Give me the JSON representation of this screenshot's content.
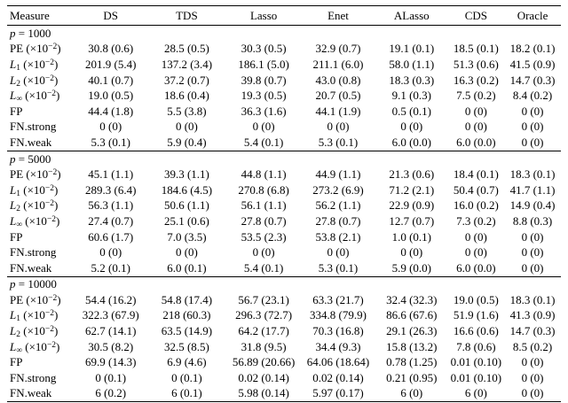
{
  "table": {
    "columns": [
      "Measure",
      "DS",
      "TDS",
      "Lasso",
      "Enet",
      "ALasso",
      "CDS",
      "Oracle"
    ],
    "sections": [
      {
        "param": {
          "var": "p",
          "value": "1000"
        },
        "rows": [
          {
            "measure": {
              "base": "PE",
              "italic": false,
              "sub": "",
              "scale": "×10",
              "exp": "−2"
            },
            "values": [
              "30.8 (0.6)",
              "28.5 (0.5)",
              "30.3 (0.5)",
              "32.9 (0.7)",
              "19.1 (0.1)",
              "18.5 (0.1)",
              "18.2 (0.1)"
            ]
          },
          {
            "measure": {
              "base": "L",
              "italic": true,
              "sub": "1",
              "scale": "×10",
              "exp": "−2"
            },
            "values": [
              "201.9 (5.4)",
              "137.2 (3.4)",
              "186.1 (5.0)",
              "211.1 (6.0)",
              "58.0 (1.1)",
              "51.3 (0.6)",
              "41.5 (0.9)"
            ]
          },
          {
            "measure": {
              "base": "L",
              "italic": true,
              "sub": "2",
              "scale": "×10",
              "exp": "−2"
            },
            "values": [
              "40.1 (0.7)",
              "37.2 (0.7)",
              "39.8 (0.7)",
              "43.0 (0.8)",
              "18.3 (0.3)",
              "16.3 (0.2)",
              "14.7 (0.3)"
            ]
          },
          {
            "measure": {
              "base": "L",
              "italic": true,
              "sub": "∞",
              "scale": "×10",
              "exp": "−2"
            },
            "values": [
              "19.0 (0.5)",
              "18.6 (0.4)",
              "19.3 (0.5)",
              "20.7 (0.5)",
              "9.1 (0.3)",
              "7.5 (0.2)",
              "8.4 (0.2)"
            ]
          },
          {
            "measure": {
              "base": "FP",
              "italic": false,
              "sub": "",
              "scale": "",
              "exp": ""
            },
            "values": [
              "44.4 (1.8)",
              "5.5 (3.8)",
              "36.3 (1.6)",
              "44.1 (1.9)",
              "0.5 (0.1)",
              "0 (0)",
              "0 (0)"
            ]
          },
          {
            "measure": {
              "base": "FN.strong",
              "italic": false,
              "sub": "",
              "scale": "",
              "exp": ""
            },
            "values": [
              "0 (0)",
              "0 (0)",
              "0 (0)",
              "0 (0)",
              "0 (0)",
              "0 (0)",
              "0 (0)"
            ]
          },
          {
            "measure": {
              "base": "FN.weak",
              "italic": false,
              "sub": "",
              "scale": "",
              "exp": ""
            },
            "values": [
              "5.3 (0.1)",
              "5.9 (0.4)",
              "5.4 (0.1)",
              "5.3 (0.1)",
              "6.0 (0.0)",
              "6.0 (0.0)",
              "0 (0)"
            ]
          }
        ]
      },
      {
        "param": {
          "var": "p",
          "value": "5000"
        },
        "rows": [
          {
            "measure": {
              "base": "PE",
              "italic": false,
              "sub": "",
              "scale": "×10",
              "exp": "−2"
            },
            "values": [
              "45.1 (1.1)",
              "39.3 (1.1)",
              "44.8 (1.1)",
              "44.9 (1.1)",
              "21.3 (0.6)",
              "18.4 (0.1)",
              "18.3 (0.1)"
            ]
          },
          {
            "measure": {
              "base": "L",
              "italic": true,
              "sub": "1",
              "scale": "×10",
              "exp": "−2"
            },
            "values": [
              "289.3 (6.4)",
              "184.6 (4.5)",
              "270.8 (6.8)",
              "273.2 (6.9)",
              "71.2 (2.1)",
              "50.4 (0.7)",
              "41.7 (1.1)"
            ]
          },
          {
            "measure": {
              "base": "L",
              "italic": true,
              "sub": "2",
              "scale": "×10",
              "exp": "−2"
            },
            "values": [
              "56.3 (1.1)",
              "50.6 (1.1)",
              "56.1 (1.1)",
              "56.2 (1.1)",
              "22.9 (0.9)",
              "16.0 (0.2)",
              "14.9 (0.4)"
            ]
          },
          {
            "measure": {
              "base": "L",
              "italic": true,
              "sub": "∞",
              "scale": "×10",
              "exp": "−2"
            },
            "values": [
              "27.4 (0.7)",
              "25.1 (0.6)",
              "27.8 (0.7)",
              "27.8 (0.7)",
              "12.7 (0.7)",
              "7.3 (0.2)",
              "8.8 (0.3)"
            ]
          },
          {
            "measure": {
              "base": "FP",
              "italic": false,
              "sub": "",
              "scale": "",
              "exp": ""
            },
            "values": [
              "60.6 (1.7)",
              "7.0 (3.5)",
              "53.5 (2.3)",
              "53.8 (2.1)",
              "1.0 (0.1)",
              "0 (0)",
              "0 (0)"
            ]
          },
          {
            "measure": {
              "base": "FN.strong",
              "italic": false,
              "sub": "",
              "scale": "",
              "exp": ""
            },
            "values": [
              "0 (0)",
              "0 (0)",
              "0 (0)",
              "0 (0)",
              "0 (0)",
              "0 (0)",
              "0 (0)"
            ]
          },
          {
            "measure": {
              "base": "FN.weak",
              "italic": false,
              "sub": "",
              "scale": "",
              "exp": ""
            },
            "values": [
              "5.2 (0.1)",
              "6.0 (0.1)",
              "5.4 (0.1)",
              "5.3 (0.1)",
              "5.9 (0.0)",
              "6.0 (0.0)",
              "0 (0)"
            ]
          }
        ]
      },
      {
        "param": {
          "var": "p",
          "value": "10000"
        },
        "rows": [
          {
            "measure": {
              "base": "PE",
              "italic": false,
              "sub": "",
              "scale": "×10",
              "exp": "−2"
            },
            "values": [
              "54.4 (16.2)",
              "54.8 (17.4)",
              "56.7 (23.1)",
              "63.3 (21.7)",
              "32.4 (32.3)",
              "19.0 (0.5)",
              "18.3 (0.1)"
            ]
          },
          {
            "measure": {
              "base": "L",
              "italic": true,
              "sub": "1",
              "scale": "×10",
              "exp": "−2"
            },
            "values": [
              "322.3 (67.9)",
              "218 (60.3)",
              "296.3 (72.7)",
              "334.8 (79.9)",
              "86.6 (67.6)",
              "51.9 (1.6)",
              "41.3 (0.9)"
            ]
          },
          {
            "measure": {
              "base": "L",
              "italic": true,
              "sub": "2",
              "scale": "×10",
              "exp": "−2"
            },
            "values": [
              "62.7 (14.1)",
              "63.5 (14.9)",
              "64.2 (17.7)",
              "70.3 (16.8)",
              "29.1 (26.3)",
              "16.6 (0.6)",
              "14.7 (0.3)"
            ]
          },
          {
            "measure": {
              "base": "L",
              "italic": true,
              "sub": "∞",
              "scale": "×10",
              "exp": "−2"
            },
            "values": [
              "30.5 (8.2)",
              "32.5 (8.5)",
              "31.8 (9.5)",
              "34.4 (9.3)",
              "15.8 (13.2)",
              "7.8 (0.6)",
              "8.5 (0.2)"
            ]
          },
          {
            "measure": {
              "base": "FP",
              "italic": false,
              "sub": "",
              "scale": "",
              "exp": ""
            },
            "values": [
              "69.9 (14.3)",
              "6.9 (4.6)",
              "56.89 (20.66)",
              "64.06 (18.64)",
              "0.78 (1.25)",
              "0.01 (0.10)",
              "0 (0)"
            ]
          },
          {
            "measure": {
              "base": "FN.strong",
              "italic": false,
              "sub": "",
              "scale": "",
              "exp": ""
            },
            "values": [
              "0 (0.1)",
              "0 (0.1)",
              "0.02 (0.14)",
              "0.02 (0.14)",
              "0.21 (0.95)",
              "0.01 (0.10)",
              "0 (0)"
            ]
          },
          {
            "measure": {
              "base": "FN.weak",
              "italic": false,
              "sub": "",
              "scale": "",
              "exp": ""
            },
            "values": [
              "6 (0.2)",
              "6 (0.1)",
              "5.98 (0.14)",
              "5.97 (0.17)",
              "6 (0)",
              "6 (0)",
              "0 (0)"
            ]
          }
        ]
      }
    ]
  }
}
